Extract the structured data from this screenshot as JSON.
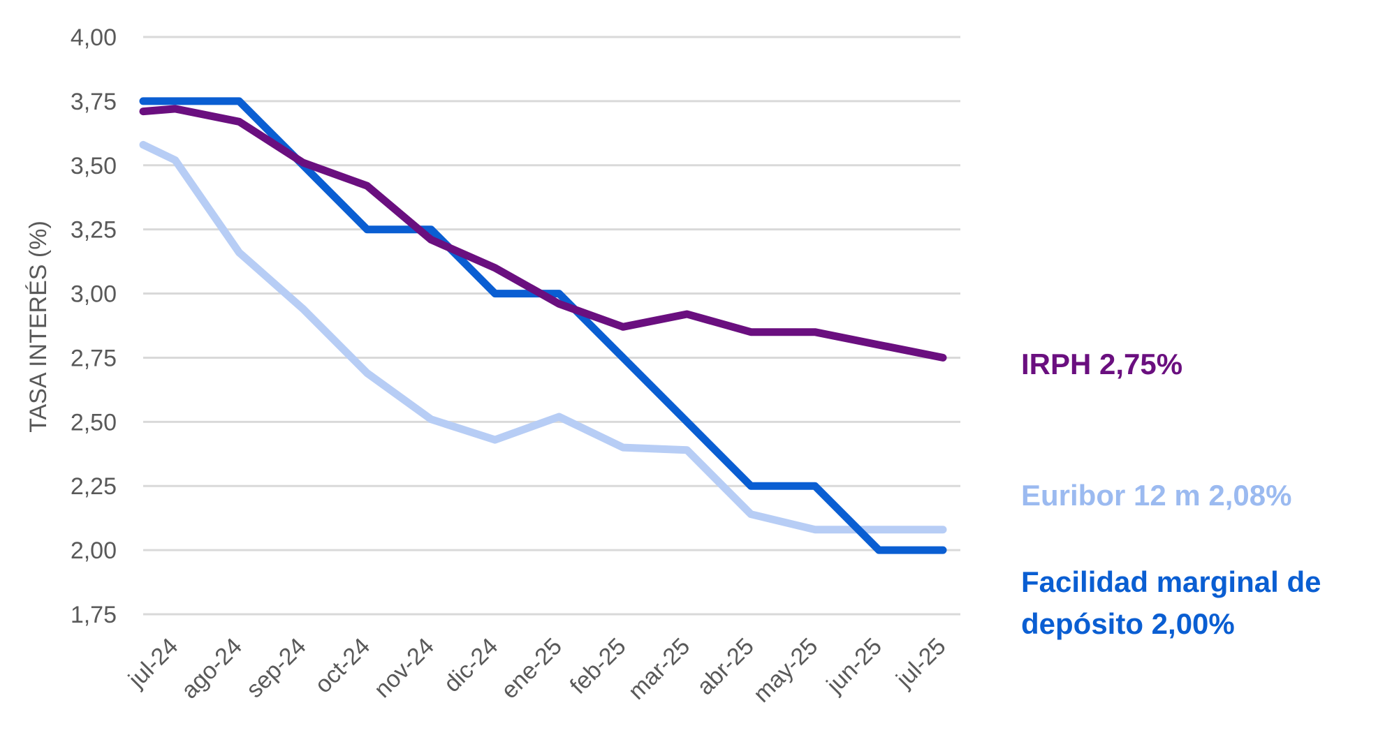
{
  "chart_data": {
    "type": "line",
    "ylabel": "TASA INTERÉS (%)",
    "xlabel": "",
    "ylim": [
      1.75,
      4.0
    ],
    "yticks": [
      1.75,
      2.0,
      2.25,
      2.5,
      2.75,
      3.0,
      3.25,
      3.5,
      3.75,
      4.0
    ],
    "ytick_labels": [
      "1,75",
      "2,00",
      "2,25",
      "2,50",
      "2,75",
      "3,00",
      "3,25",
      "3,50",
      "3,75",
      "4,00"
    ],
    "grid": true,
    "x_labels": [
      "jul-24",
      "ago-24",
      "sep-24",
      "oct-24",
      "nov-24",
      "dic-24",
      "ene-25",
      "feb-25",
      "mar-25",
      "abr-25",
      "may-25",
      "jun-25",
      "jul-25"
    ],
    "series": [
      {
        "name": "Euribor 12 m",
        "color": "#b7cdf5",
        "x": [
          "jul-24",
          "jul-24",
          "ago-24",
          "sep-24",
          "oct-24",
          "nov-24",
          "dic-24",
          "ene-25",
          "feb-25",
          "mar-25",
          "abr-25",
          "may-25",
          "jun-25",
          "jul-25"
        ],
        "x_pos": [
          0,
          0.5,
          1.5,
          2.5,
          3.5,
          4.5,
          5.5,
          6.5,
          7.5,
          8.5,
          9.5,
          10.5,
          11.5,
          12.5
        ],
        "values": [
          3.58,
          3.52,
          3.16,
          2.94,
          2.69,
          2.51,
          2.43,
          2.52,
          2.4,
          2.39,
          2.14,
          2.08,
          2.08,
          2.08
        ]
      },
      {
        "name": "Facilidad marginal de depósito",
        "color": "#0a5ed2",
        "x_pos": [
          0,
          1.5,
          2.5,
          3.5,
          4.5,
          5.5,
          6.5,
          7.5,
          8.5,
          9.5,
          10.5,
          11.5,
          12.5
        ],
        "values": [
          3.75,
          3.75,
          3.5,
          3.25,
          3.25,
          3.0,
          3.0,
          2.75,
          2.5,
          2.25,
          2.25,
          2.0,
          2.0
        ]
      },
      {
        "name": "IRPH",
        "color": "#6a0f7f",
        "x_pos": [
          0,
          0.5,
          1.5,
          2.5,
          3.5,
          4.5,
          5.5,
          6.5,
          7.5,
          8.5,
          9.5,
          10.5,
          11.5,
          12.5
        ],
        "values": [
          3.71,
          3.72,
          3.67,
          3.51,
          3.42,
          3.21,
          3.1,
          2.96,
          2.87,
          2.92,
          2.85,
          2.85,
          2.8,
          2.75
        ]
      }
    ],
    "annotations": [
      {
        "text": "IRPH 2,75%",
        "color": "#6a0f7f"
      },
      {
        "text": "Euribor 12 m 2,08%",
        "color": "#9bbaf0"
      },
      {
        "text": "Facilidad marginal de depósito 2,00%",
        "color": "#0a5ed2"
      }
    ]
  }
}
